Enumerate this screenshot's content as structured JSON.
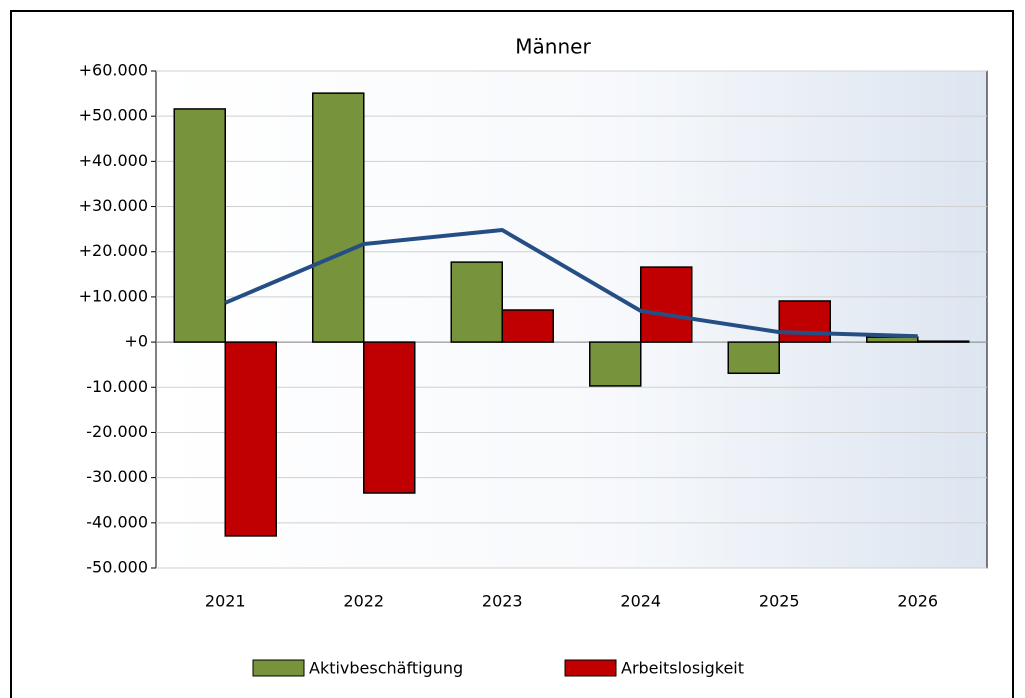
{
  "chart_data": {
    "type": "bar",
    "title": "Männer",
    "categories": [
      "2021",
      "2022",
      "2023",
      "2024",
      "2025",
      "2026"
    ],
    "series": [
      {
        "name": "Aktivbeschäftigung",
        "color": "#77933c",
        "values": [
          51600,
          55100,
          17700,
          -9700,
          -6900,
          1100
        ]
      },
      {
        "name": "Arbeitslosigkeit",
        "color": "#c00000",
        "values": [
          -42900,
          -33400,
          7100,
          16600,
          9100,
          200
        ]
      },
      {
        "type": "line",
        "color": "#254f84",
        "values": [
          8700,
          21700,
          24800,
          6900,
          2200,
          1300
        ]
      }
    ],
    "ylim": [
      -50000,
      60000
    ],
    "yticks": [
      {
        "value": 60000,
        "label": "+60.000"
      },
      {
        "value": 50000,
        "label": "+50.000"
      },
      {
        "value": 40000,
        "label": "+40.000"
      },
      {
        "value": 30000,
        "label": "+30.000"
      },
      {
        "value": 20000,
        "label": "+20.000"
      },
      {
        "value": 10000,
        "label": "+10.000"
      },
      {
        "value": 0,
        "label": "+0"
      },
      {
        "value": -10000,
        "label": "-10.000"
      },
      {
        "value": -20000,
        "label": "-20.000"
      },
      {
        "value": -30000,
        "label": "-30.000"
      },
      {
        "value": -40000,
        "label": "-40.000"
      },
      {
        "value": -50000,
        "label": "-50.000"
      }
    ],
    "grid": true,
    "legend": "bottom"
  }
}
